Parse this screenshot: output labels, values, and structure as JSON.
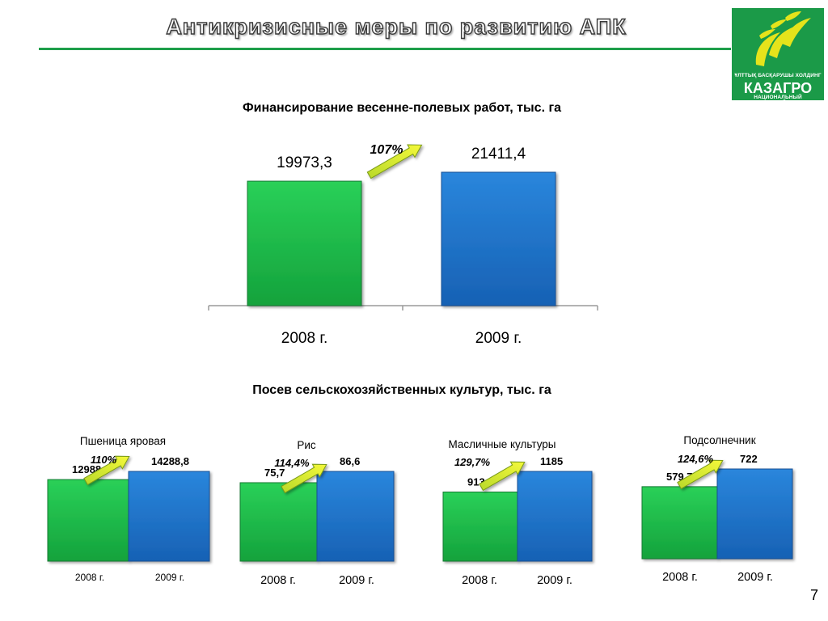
{
  "header": {
    "title": "Антикризисные меры по развитию АПК",
    "logo": {
      "top_line": "ҰЛТТЫҚ БАСҚАРУШЫ ХОЛДИНГ",
      "name": "КАЗАГРО",
      "bottom_line": "НАЦИОНАЛЬНЫЙ УПРАВЛЯЮЩИЙ ХОЛДИНГ",
      "icon": "wheat-ears-icon",
      "colors": {
        "background": "#1b9a48",
        "ears": "#e5e31b"
      }
    }
  },
  "colors": {
    "year_2008": "#1fb848",
    "year_2009": "#1c72c8",
    "arrow": "#e3f02c"
  },
  "chart_data": [
    {
      "type": "bar",
      "title": "Финансирование весенне-полевых работ, тыс. га",
      "categories": [
        "2008 г.",
        "2009 г."
      ],
      "values": [
        19973.3,
        21411.4
      ],
      "value_labels": [
        "19973,3",
        "21411,4"
      ],
      "growth_label": "107%"
    },
    {
      "type": "bar",
      "title": "Посев сельскохозяйственных культур, тыс. га",
      "groups": [
        {
          "name": "Пшеница яровая",
          "categories": [
            "2008 г.",
            "2009 г."
          ],
          "values": [
            12988,
            14288.8
          ],
          "value_labels": [
            "12988",
            "14288,8"
          ],
          "growth_label": "110%"
        },
        {
          "name": "Рис",
          "categories": [
            "2008 г.",
            "2009 г."
          ],
          "values": [
            75.7,
            86.6
          ],
          "value_labels": [
            "75,7",
            "86,6"
          ],
          "growth_label": "114,4%"
        },
        {
          "name": "Масличные культуры",
          "categories": [
            "2008 г.",
            "2009 г."
          ],
          "values": [
            913,
            1185
          ],
          "value_labels": [
            "913",
            "1185"
          ],
          "growth_label": "129,7%"
        },
        {
          "name": "Подсолнечник",
          "categories": [
            "2008 г.",
            "2009 г."
          ],
          "values": [
            579.7,
            722
          ],
          "value_labels": [
            "579,7",
            "722"
          ],
          "growth_label": "124,6%"
        }
      ]
    }
  ],
  "page_number": "7"
}
